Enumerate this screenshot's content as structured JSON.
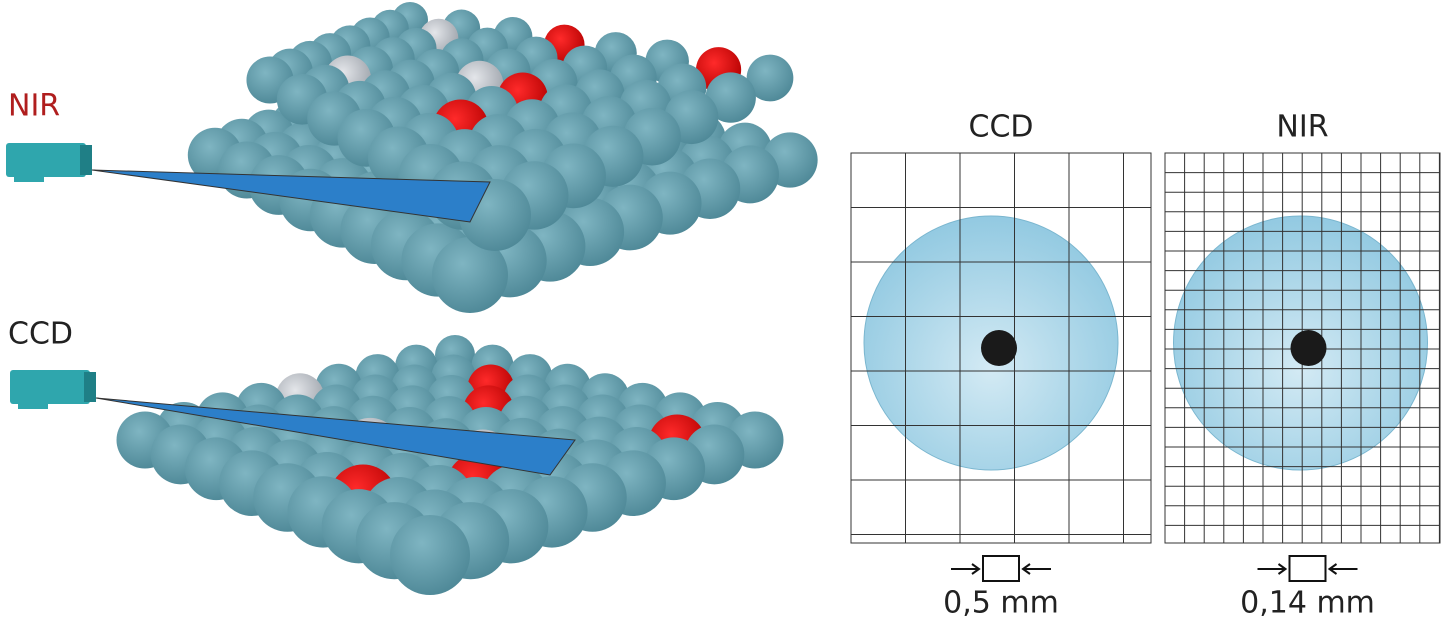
{
  "cameras": [
    {
      "label": "NIR"
    },
    {
      "label": "CCD"
    }
  ],
  "panels": [
    {
      "title": "CCD",
      "scale": "0,5 mm"
    },
    {
      "title": "NIR",
      "scale": "0,14 mm"
    }
  ]
}
